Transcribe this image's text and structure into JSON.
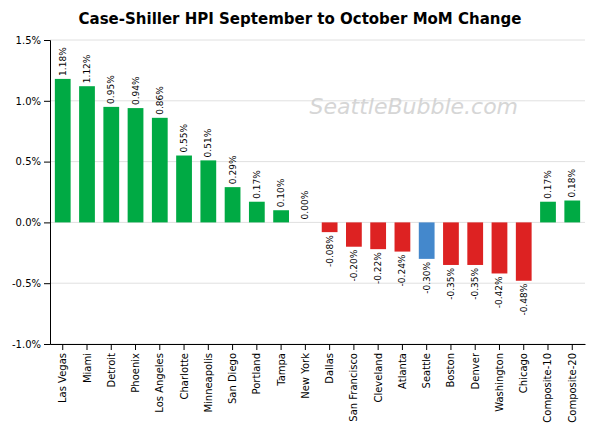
{
  "chart_data": {
    "type": "bar",
    "title": "Case-Shiller HPI September to October MoM Change",
    "categories": [
      "Las Vegas",
      "Miami",
      "Detroit",
      "Phoenix",
      "Los Angeles",
      "Charlotte",
      "Minneapolis",
      "San Diego",
      "Portland",
      "Tampa",
      "New York",
      "Dallas",
      "San Francisco",
      "Cleveland",
      "Atlanta",
      "Seattle",
      "Boston",
      "Denver",
      "Washington",
      "Chicago",
      "Composite-10",
      "Composite-20"
    ],
    "values": [
      1.18,
      1.12,
      0.95,
      0.94,
      0.86,
      0.55,
      0.51,
      0.29,
      0.17,
      0.1,
      0.0,
      -0.08,
      -0.2,
      -0.22,
      -0.24,
      -0.3,
      -0.35,
      -0.35,
      -0.42,
      -0.48,
      0.17,
      0.18
    ],
    "value_labels": [
      "1.18%",
      "1.12%",
      "0.95%",
      "0.94%",
      "0.86%",
      "0.55%",
      "0.51%",
      "0.29%",
      "0.17%",
      "0.10%",
      "0.00%",
      "-0.08%",
      "-0.20%",
      "-0.22%",
      "-0.24%",
      "-0.30%",
      "-0.35%",
      "-0.35%",
      "-0.42%",
      "-0.48%",
      "0.17%",
      "0.18%"
    ],
    "data_labels": true,
    "colors": [
      "#00aa44",
      "#00aa44",
      "#00aa44",
      "#00aa44",
      "#00aa44",
      "#00aa44",
      "#00aa44",
      "#00aa44",
      "#00aa44",
      "#00aa44",
      "#00aa44",
      "#dd2222",
      "#dd2222",
      "#dd2222",
      "#dd2222",
      "#4488cc",
      "#dd2222",
      "#dd2222",
      "#dd2222",
      "#dd2222",
      "#00aa44",
      "#00aa44"
    ],
    "ylim": [
      -1.0,
      1.5
    ],
    "yticks": [
      {
        "value": -1.0,
        "label": "-1.0%"
      },
      {
        "value": -0.5,
        "label": "-0.5%"
      },
      {
        "value": 0.0,
        "label": "0.0%"
      },
      {
        "value": 0.5,
        "label": "0.5%"
      },
      {
        "value": 1.0,
        "label": "1.0%"
      },
      {
        "value": 1.5,
        "label": "1.5%"
      }
    ],
    "grid": true,
    "annotations": [
      "SeattleBubble.com"
    ]
  }
}
